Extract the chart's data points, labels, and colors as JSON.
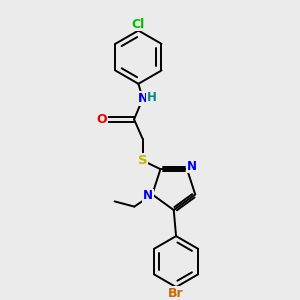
{
  "background_color": "#ebebeb",
  "bond_color": "#000000",
  "atom_colors": {
    "Cl": "#00bb00",
    "N": "#0000ee",
    "H": "#008888",
    "O": "#ee0000",
    "S": "#bbbb00",
    "Br": "#cc6600"
  },
  "font_size": 8.5,
  "fig_size": [
    3.0,
    3.0
  ],
  "dpi": 100,
  "xlim": [
    0,
    10
  ],
  "ylim": [
    0,
    10
  ]
}
